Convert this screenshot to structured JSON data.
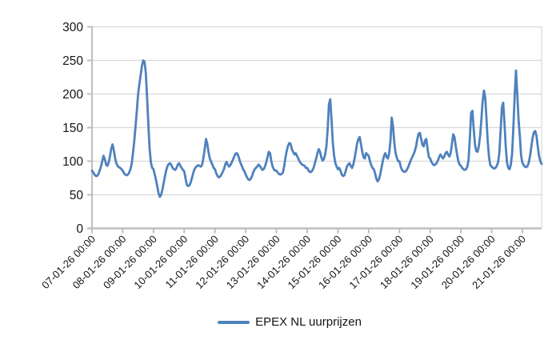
{
  "legend": {
    "label": "EPEX NL uurprijzen"
  },
  "colors": {
    "line": "#4F81BD",
    "gridline": "#D9D9D9",
    "axis": "#BFBFBF",
    "text": "#141414",
    "background": "#FFFFFF"
  },
  "chart_data": {
    "type": "line",
    "title": "",
    "xlabel": "",
    "ylabel": "",
    "ylim": [
      0,
      300
    ],
    "y_ticks": [
      0,
      50,
      100,
      150,
      200,
      250,
      300
    ],
    "grid": "horizontal",
    "legend_position": "bottom",
    "points_per_day": 24,
    "x_tick_labels": [
      "07-01-26 00:00",
      "08-01-26 00:00",
      "09-01-26 00:00",
      "10-01-26 00:00",
      "11-01-26 00:00",
      "12-01-26 00:00",
      "13-01-26 00:00",
      "14-01-26 00:00",
      "15-01-26 00:00",
      "16-01-26 00:00",
      "17-01-26 00:00",
      "18-01-26 00:00",
      "19-01-26 00:00",
      "20-01-26 00:00",
      "21-01-26 00:00"
    ],
    "series": [
      {
        "name": "EPEX NL uurprijzen",
        "color": "#4F81BD",
        "values": [
          86,
          83,
          80,
          78,
          78,
          81,
          86,
          92,
          100,
          108,
          103,
          95,
          93,
          98,
          107,
          118,
          125,
          117,
          105,
          97,
          93,
          91,
          90,
          88,
          86,
          82,
          80,
          79,
          80,
          83,
          88,
          96,
          112,
          130,
          152,
          175,
          200,
          215,
          228,
          242,
          250,
          248,
          232,
          195,
          155,
          118,
          98,
          90,
          88,
          80,
          72,
          62,
          52,
          47,
          50,
          58,
          68,
          78,
          87,
          93,
          96,
          97,
          94,
          90,
          88,
          87,
          90,
          95,
          97,
          93,
          90,
          87,
          85,
          75,
          65,
          63,
          64,
          68,
          75,
          82,
          88,
          91,
          93,
          94,
          93,
          92,
          95,
          105,
          118,
          133,
          126,
          113,
          104,
          99,
          95,
          90,
          88,
          82,
          78,
          76,
          77,
          80,
          84,
          88,
          95,
          99,
          95,
          92,
          94,
          98,
          102,
          107,
          111,
          112,
          109,
          103,
          97,
          93,
          88,
          85,
          80,
          76,
          73,
          72,
          74,
          78,
          84,
          88,
          90,
          92,
          95,
          93,
          90,
          87,
          88,
          92,
          98,
          106,
          114,
          112,
          100,
          92,
          88,
          86,
          86,
          83,
          81,
          80,
          81,
          83,
          92,
          105,
          115,
          123,
          127,
          126,
          118,
          114,
          110,
          112,
          108,
          104,
          100,
          97,
          95,
          94,
          93,
          90,
          90,
          86,
          84,
          84,
          86,
          90,
          97,
          104,
          112,
          118,
          114,
          106,
          101,
          103,
          110,
          122,
          148,
          185,
          192,
          162,
          128,
          108,
          97,
          92,
          88,
          90,
          86,
          80,
          78,
          79,
          85,
          92,
          95,
          97,
          93,
          90,
          95,
          104,
          115,
          127,
          133,
          136,
          125,
          114,
          106,
          104,
          112,
          110,
          108,
          100,
          94,
          90,
          88,
          82,
          74,
          70,
          73,
          80,
          90,
          100,
          108,
          112,
          106,
          104,
          112,
          130,
          165,
          152,
          128,
          112,
          105,
          100,
          100,
          92,
          87,
          85,
          84,
          85,
          88,
          92,
          97,
          102,
          106,
          110,
          115,
          122,
          133,
          141,
          142,
          133,
          124,
          122,
          131,
          133,
          118,
          106,
          104,
          99,
          96,
          94,
          95,
          97,
          101,
          106,
          110,
          107,
          104,
          107,
          112,
          114,
          110,
          107,
          112,
          126,
          140,
          136,
          122,
          110,
          100,
          95,
          93,
          90,
          88,
          87,
          88,
          92,
          102,
          135,
          172,
          175,
          148,
          125,
          115,
          114,
          122,
          138,
          162,
          190,
          205,
          195,
          162,
          128,
          105,
          94,
          92,
          90,
          89,
          90,
          93,
          98,
          112,
          145,
          180,
          187,
          158,
          122,
          98,
          90,
          88,
          95,
          112,
          152,
          198,
          235,
          200,
          162,
          138,
          108,
          98,
          94,
          92,
          91,
          93,
          98,
          108,
          122,
          135,
          143,
          145,
          138,
          122,
          108,
          100,
          96
        ]
      }
    ]
  }
}
